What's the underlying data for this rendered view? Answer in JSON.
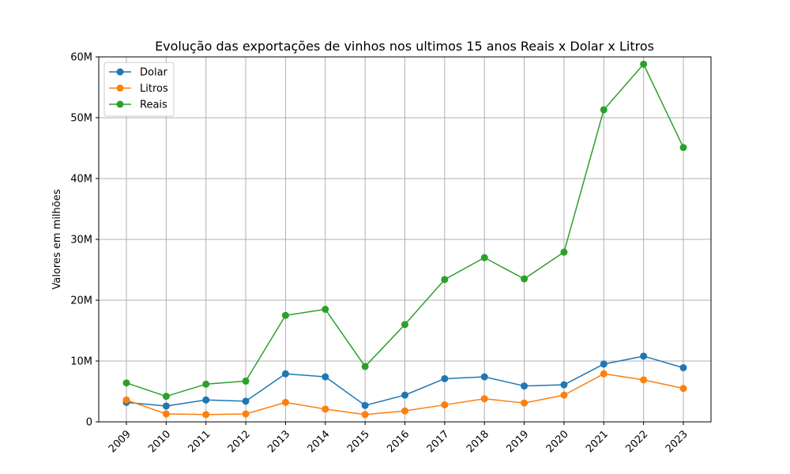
{
  "chart_data": {
    "type": "line",
    "title": "Evolução das exportações de vinhos nos ultimos 15 anos Reais x Dolar x Litros",
    "xlabel": "",
    "ylabel": "Valores em milhões",
    "x": [
      "2009",
      "2010",
      "2011",
      "2012",
      "2013",
      "2014",
      "2015",
      "2016",
      "2017",
      "2018",
      "2019",
      "2020",
      "2021",
      "2022",
      "2023"
    ],
    "ylim": [
      0,
      60000000
    ],
    "yticks": [
      0,
      10000000,
      20000000,
      30000000,
      40000000,
      50000000,
      60000000
    ],
    "ytick_labels": [
      "0",
      "10M",
      "20M",
      "30M",
      "40M",
      "50M",
      "60M"
    ],
    "grid": true,
    "legend_position": "top-left",
    "series": [
      {
        "name": "Dolar",
        "color": "#1f77b4",
        "values": [
          3200000,
          2600000,
          3600000,
          3400000,
          7900000,
          7400000,
          2700000,
          4400000,
          7100000,
          7400000,
          5900000,
          6100000,
          9500000,
          10800000,
          8900000
        ]
      },
      {
        "name": "Litros",
        "color": "#ff7f0e",
        "values": [
          3600000,
          1300000,
          1200000,
          1300000,
          3200000,
          2100000,
          1200000,
          1800000,
          2800000,
          3800000,
          3100000,
          4400000,
          7900000,
          6900000,
          5500000
        ]
      },
      {
        "name": "Reais",
        "color": "#2ca02c",
        "values": [
          6400000,
          4200000,
          6200000,
          6700000,
          17500000,
          18500000,
          9100000,
          16000000,
          23400000,
          27000000,
          23500000,
          27900000,
          51300000,
          58800000,
          45100000
        ]
      }
    ]
  }
}
